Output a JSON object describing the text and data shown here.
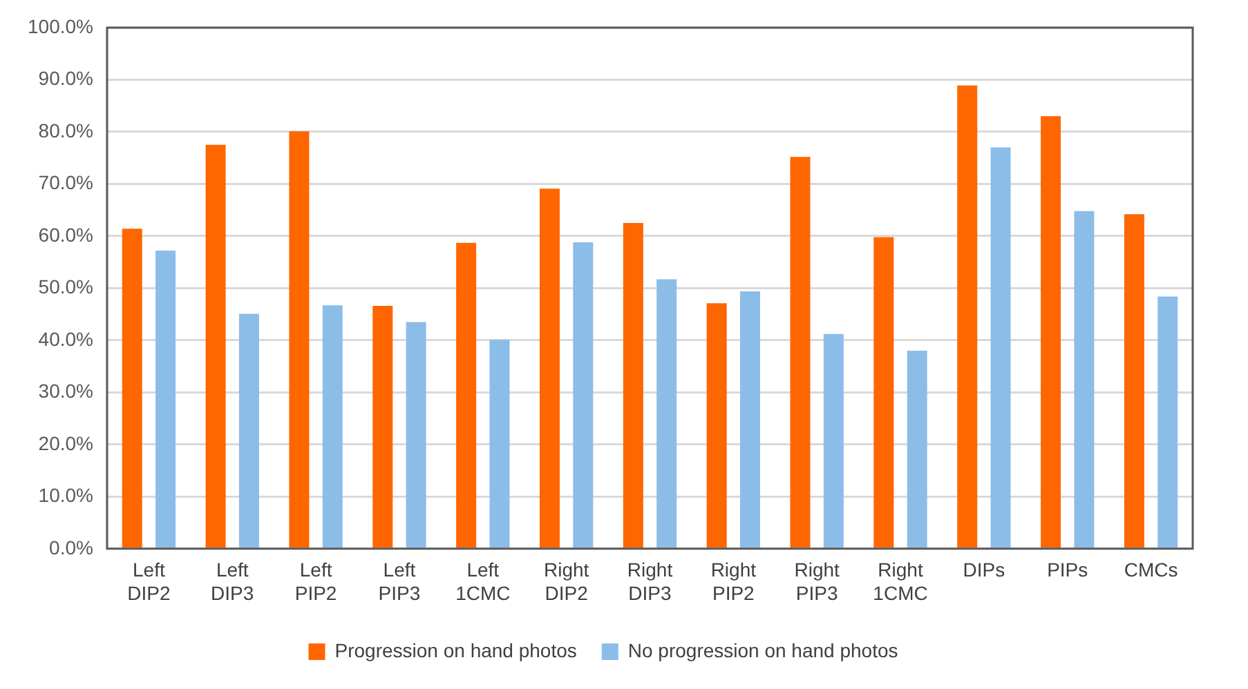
{
  "chart_data": {
    "type": "bar",
    "categories": [
      "Left DIP2",
      "Left DIP3",
      "Left PIP2",
      "Left PIP3",
      "Left 1CMC",
      "Right DIP2",
      "Right DIP3",
      "Right PIP2",
      "Right PIP3",
      "Right 1CMC",
      "DIPs",
      "PIPs",
      "CMCs"
    ],
    "series": [
      {
        "name": "Progression on hand photos",
        "color": "#ff6600",
        "values": [
          61.4,
          77.5,
          80.1,
          46.6,
          58.7,
          69.1,
          62.5,
          47.1,
          75.2,
          59.8,
          88.9,
          83.0,
          64.2
        ]
      },
      {
        "name": "No progression on hand photos",
        "color": "#8cbde9",
        "values": [
          57.2,
          45.1,
          46.7,
          43.5,
          40.1,
          58.8,
          51.7,
          49.4,
          41.2,
          38.0,
          77.0,
          64.8,
          48.4
        ]
      }
    ],
    "ylim": [
      0,
      100
    ],
    "yticks": [
      {
        "value": 0,
        "label": "0.0%"
      },
      {
        "value": 10,
        "label": "10.0%"
      },
      {
        "value": 20,
        "label": "20.0%"
      },
      {
        "value": 30,
        "label": "30.0%"
      },
      {
        "value": 40,
        "label": "40.0%"
      },
      {
        "value": 50,
        "label": "50.0%"
      },
      {
        "value": 60,
        "label": "60.0%"
      },
      {
        "value": 70,
        "label": "70.0%"
      },
      {
        "value": 80,
        "label": "80.0%"
      },
      {
        "value": 90,
        "label": "90.0%"
      },
      {
        "value": 100,
        "label": "100.0%"
      }
    ],
    "grid": "y",
    "legend": "bottom"
  }
}
